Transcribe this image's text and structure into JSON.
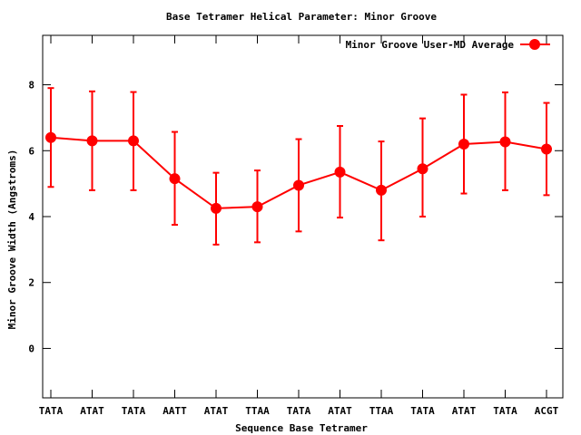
{
  "chart_data": {
    "type": "line",
    "title": "Base Tetramer Helical Parameter: Minor Groove",
    "xlabel": "Sequence Base Tetramer",
    "ylabel": "Minor Groove Width (Angstroms)",
    "categories": [
      "TATA",
      "ATAT",
      "TATA",
      "AATT",
      "ATAT",
      "TTAA",
      "TATA",
      "ATAT",
      "TTAA",
      "TATA",
      "ATAT",
      "TATA",
      "ACGT"
    ],
    "ylim": [
      -1.5,
      9.5
    ],
    "yticks": [
      0,
      2,
      4,
      6,
      8
    ],
    "ytick_labels": [
      "0",
      "2",
      "4",
      "6",
      "8"
    ],
    "grid": false,
    "legend_position": "top-right",
    "series": [
      {
        "name": "Minor Groove User-MD Average",
        "color": "#ff0000",
        "marker": "circle",
        "values": [
          6.4,
          6.3,
          6.3,
          5.15,
          4.25,
          4.3,
          4.95,
          5.35,
          4.8,
          5.45,
          6.2,
          6.27,
          6.05
        ],
        "err_low": [
          4.9,
          4.8,
          4.8,
          3.75,
          3.15,
          3.22,
          3.55,
          3.97,
          3.28,
          4.0,
          4.7,
          4.8,
          4.65
        ],
        "err_high": [
          7.9,
          7.8,
          7.78,
          6.57,
          5.33,
          5.4,
          6.35,
          6.75,
          6.28,
          6.98,
          7.7,
          7.77,
          7.45
        ]
      }
    ]
  }
}
